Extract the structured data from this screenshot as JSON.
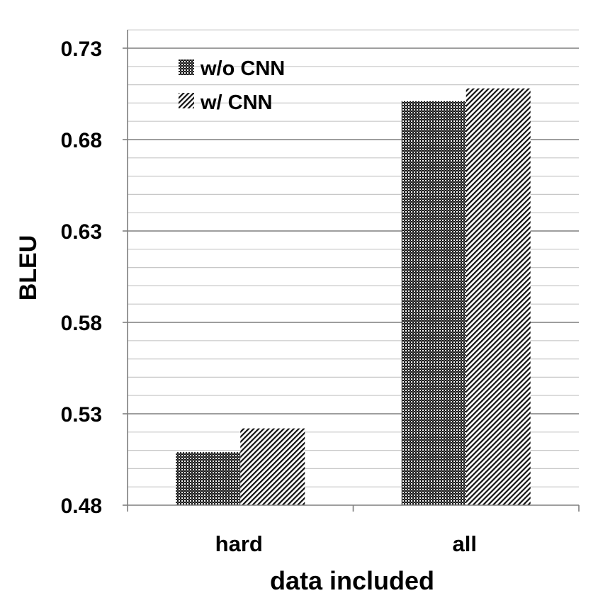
{
  "chart_data": {
    "type": "bar",
    "categories": [
      "hard",
      "all"
    ],
    "series": [
      {
        "name": "w/o CNN",
        "values": [
          0.509,
          0.701
        ],
        "pattern": "dense-checker"
      },
      {
        "name": "w/ CNN",
        "values": [
          0.522,
          0.708
        ],
        "pattern": "diagonal-hatch"
      }
    ],
    "title": "",
    "xlabel": "data included",
    "ylabel": "BLEU",
    "ylim": [
      0.48,
      0.74
    ],
    "yticks": [
      0.48,
      0.53,
      0.58,
      0.63,
      0.68,
      0.73
    ],
    "ytick_labels": [
      "0.48",
      "0.53",
      "0.58",
      "0.63",
      "0.68",
      "0.73"
    ],
    "minor_grid_step": 0.01,
    "grid": true,
    "legend_position": "top-left"
  }
}
